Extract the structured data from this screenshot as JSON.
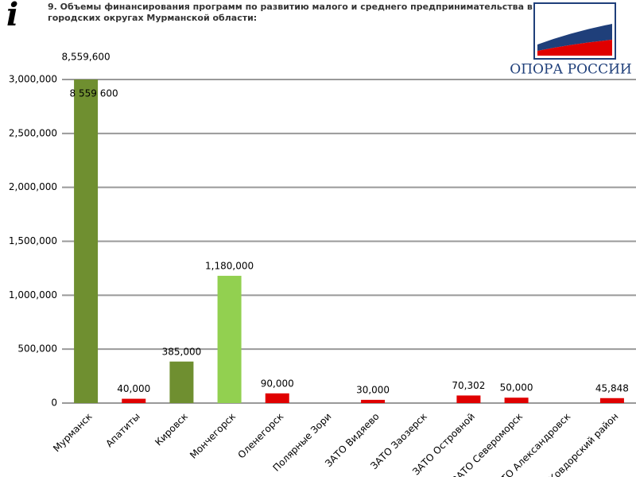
{
  "header": {
    "title": "9. Объемы финансирования программ по развитию малого и среднего предпринимательства в городских округах Мурманской области:",
    "logo": "ОПОРА РОССИИ"
  },
  "chart_data": {
    "type": "bar",
    "categories": [
      "Мурманск",
      "Апатиты",
      "Кировск",
      "Мончегорск",
      "Оленегорск",
      "Полярные Зори",
      "ЗАТО Видяево",
      "ЗАТО Заозерск",
      "ЗАТО Островной",
      "ЗАТО Североморск",
      "ЗАТО Александровск",
      "Ковдорский район"
    ],
    "values": [
      8559600,
      40000,
      385000,
      1180000,
      90000,
      null,
      30000,
      null,
      70302,
      50000,
      null,
      45848
    ],
    "value_labels": [
      "8,559,600",
      "40,000",
      "385,000",
      "1,180,000",
      "90,000",
      null,
      "30,000",
      null,
      "70,302",
      "50,000",
      null,
      "45,848"
    ],
    "colors": [
      "#6f8f30",
      "#e00000",
      "#6f8f30",
      "#92d050",
      "#e00000",
      "#e00000",
      "#e00000",
      "#e00000",
      "#e00000",
      "#e00000",
      "#e00000",
      "#e00000"
    ],
    "annotation": "8 559 600",
    "ylim": [
      0,
      3000000
    ],
    "yticks": [
      {
        "value": 0,
        "label": "0"
      },
      {
        "value": 500000,
        "label": "500,000"
      },
      {
        "value": 1000000,
        "label": "1,000,000"
      },
      {
        "value": 1500000,
        "label": "1,500,000"
      },
      {
        "value": 2000000,
        "label": "2,000,000"
      },
      {
        "value": 2500000,
        "label": "2,500,000"
      },
      {
        "value": 3000000,
        "label": "3,000,000"
      }
    ],
    "grid": true
  }
}
